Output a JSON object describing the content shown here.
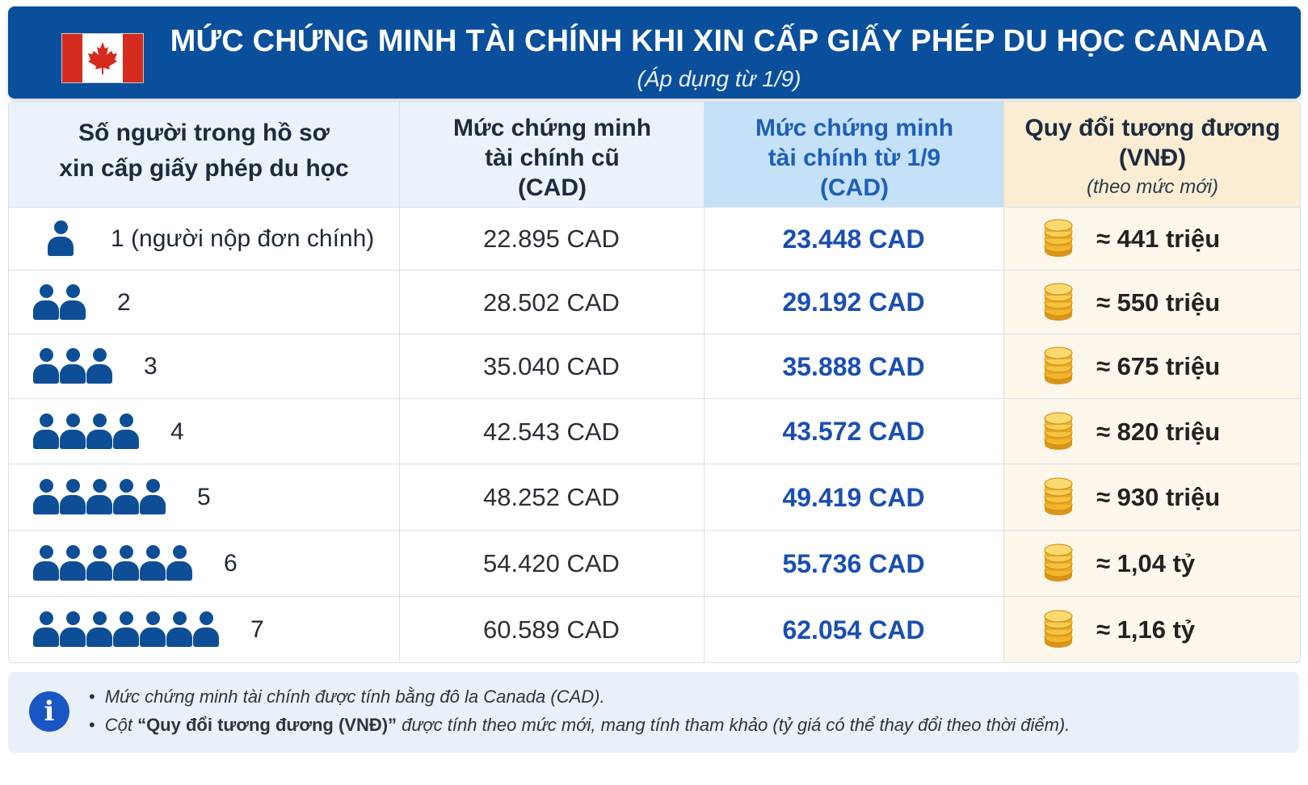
{
  "header": {
    "title": "MỨC CHỨNG MINH TÀI CHÍNH KHI XIN CẤP GIẤY PHÉP DU HỌC CANADA",
    "subtitle": "(Áp dụng từ 1/9)",
    "flag_icon": "canada-flag-icon",
    "colors": {
      "banner": "#0a4f9b",
      "flag_red": "#d52b1e"
    }
  },
  "table": {
    "headers": {
      "people": [
        "Số người trong hồ sơ",
        "xin cấp giấy phép du học"
      ],
      "old": [
        "Mức chứng minh",
        "tài chính cũ",
        "(CAD)"
      ],
      "new": [
        "Mức chứng minh",
        "tài chính từ 1/9",
        "(CAD)"
      ],
      "vnd": [
        "Quy đổi tương đương",
        "(VNĐ)"
      ],
      "vnd_note": "(theo mức mới)"
    },
    "rows": [
      {
        "count": "1 (người nộp đơn chính)",
        "icons": 1,
        "old": "22.895 CAD",
        "new": "23.448 CAD",
        "vnd": "≈ 441 triệu"
      },
      {
        "count": "2",
        "icons": 2,
        "old": "28.502 CAD",
        "new": "29.192 CAD",
        "vnd": "≈ 550 triệu"
      },
      {
        "count": "3",
        "icons": 3,
        "old": "35.040 CAD",
        "new": "35.888 CAD",
        "vnd": "≈ 675 triệu"
      },
      {
        "count": "4",
        "icons": 4,
        "old": "42.543 CAD",
        "new": "43.572 CAD",
        "vnd": "≈ 820 triệu"
      },
      {
        "count": "5",
        "icons": 5,
        "old": "48.252 CAD",
        "new": "49.419 CAD",
        "vnd": "≈ 930 triệu"
      },
      {
        "count": "6",
        "icons": 6,
        "old": "54.420 CAD",
        "new": "55.736 CAD",
        "vnd": "≈ 1,04 tỷ"
      },
      {
        "count": "7",
        "icons": 7,
        "old": "60.589 CAD",
        "new": "62.054 CAD",
        "vnd": "≈ 1,16 tỷ"
      }
    ],
    "icons": {
      "person": "person-icon",
      "coins": "coin-stack-icon"
    },
    "colors": {
      "new_value": "#1a4fb0",
      "new_header_bg": "#c4e1f8",
      "vnd_bg": "#fdf6ea",
      "person": "#0e4e96",
      "coin": "#f2b52b"
    }
  },
  "notes": {
    "icon": "info-icon",
    "line1": "Mức chứng minh tài chính được tính bằng đô la Canada (CAD).",
    "line2_prefix": "Cột ",
    "line2_bold": "“Quy đổi tương đương (VNĐ)”",
    "line2_suffix": " được tính theo mức mới, mang tính tham khảo (tỷ giá có thể thay đổi theo thời điểm)."
  }
}
